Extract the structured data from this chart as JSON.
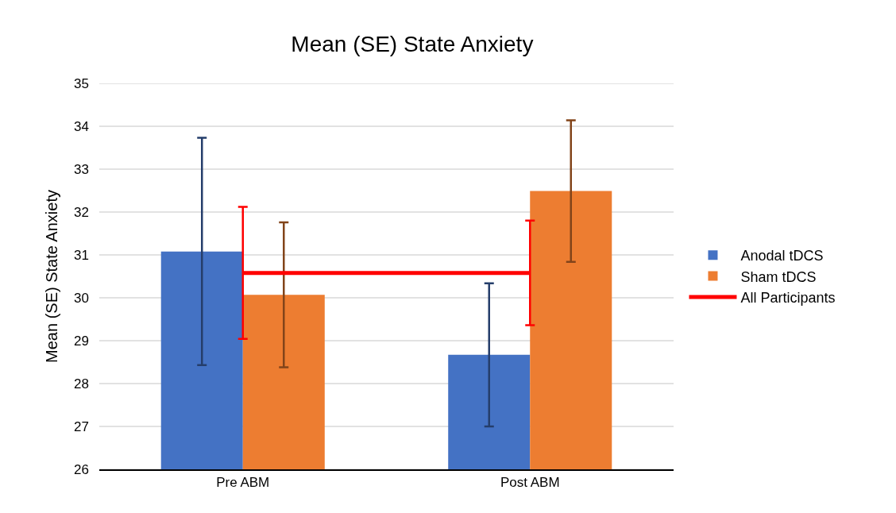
{
  "chart_data": {
    "type": "bar",
    "title": "Mean (SE) State Anxiety",
    "ylabel": "Mean (SE) State Anxiety",
    "categories": [
      "Pre ABM",
      "Post ABM"
    ],
    "series": [
      {
        "name": "Anodal tDCS",
        "color": "#4472c4",
        "values": [
          31.08,
          28.67
        ],
        "errors": [
          2.65,
          1.67
        ]
      },
      {
        "name": "Sham tDCS",
        "color": "#ed7d31",
        "values": [
          30.07,
          32.49
        ],
        "errors": [
          1.69,
          1.65
        ]
      },
      {
        "name": "All Participants",
        "type": "line",
        "color": "#ff0000",
        "values": [
          30.58,
          30.58
        ],
        "errors": [
          1.54,
          1.22
        ],
        "marker": "none",
        "line_style": "solid"
      }
    ],
    "ylim": [
      26,
      35
    ],
    "yticks": [
      26,
      27,
      28,
      29,
      30,
      31,
      32,
      33,
      34,
      35
    ],
    "grid": "y",
    "legend": "right"
  }
}
